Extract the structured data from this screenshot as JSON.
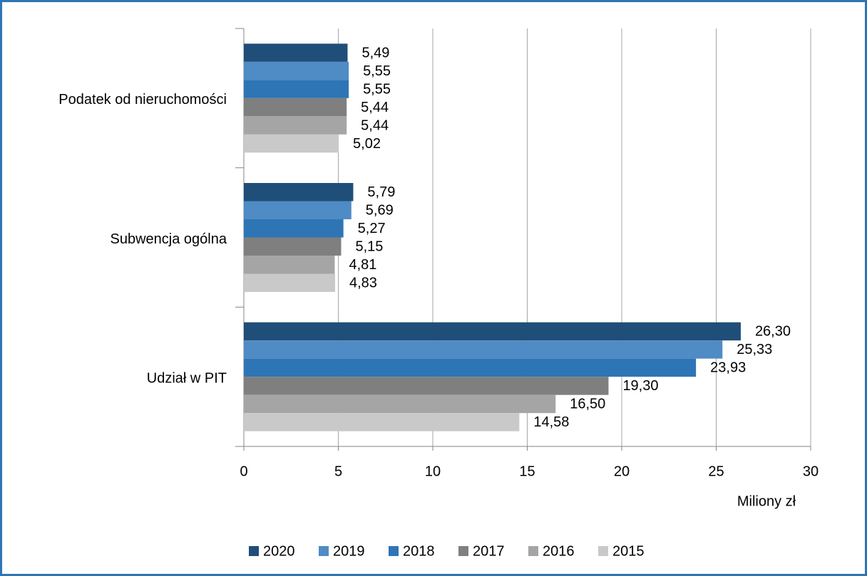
{
  "chart_data": {
    "type": "bar",
    "orientation": "horizontal",
    "categories": [
      "Podatek od nieruchomości",
      "Subwencja ogólna",
      "Udział w PIT"
    ],
    "series": [
      {
        "name": "2020",
        "color": "#1f4e79",
        "values": [
          5.49,
          5.79,
          26.3
        ],
        "value_labels": [
          "5,49",
          "5,79",
          "26,30"
        ]
      },
      {
        "name": "2019",
        "color": "#4f8bc4",
        "values": [
          5.55,
          5.69,
          25.33
        ],
        "value_labels": [
          "5,55",
          "5,69",
          "25,33"
        ]
      },
      {
        "name": "2018",
        "color": "#2e75b6",
        "values": [
          5.55,
          5.27,
          23.93
        ],
        "value_labels": [
          "5,55",
          "5,27",
          "23,93"
        ]
      },
      {
        "name": "2017",
        "color": "#7f7f7f",
        "values": [
          5.44,
          5.15,
          19.3
        ],
        "value_labels": [
          "5,44",
          "5,15",
          "19,30"
        ]
      },
      {
        "name": "2016",
        "color": "#a5a5a5",
        "values": [
          5.44,
          4.81,
          16.5
        ],
        "value_labels": [
          "5,44",
          "4,81",
          "16,50"
        ]
      },
      {
        "name": "2015",
        "color": "#c9c9c9",
        "values": [
          5.02,
          4.83,
          14.58
        ],
        "value_labels": [
          "5,02",
          "4,83",
          "14,58"
        ]
      }
    ],
    "xlabel": "Miliony zł",
    "xlim": [
      0,
      30
    ],
    "xticks": [
      0,
      5,
      10,
      15,
      20,
      25,
      30
    ],
    "grid": true,
    "legend": "bottom"
  }
}
